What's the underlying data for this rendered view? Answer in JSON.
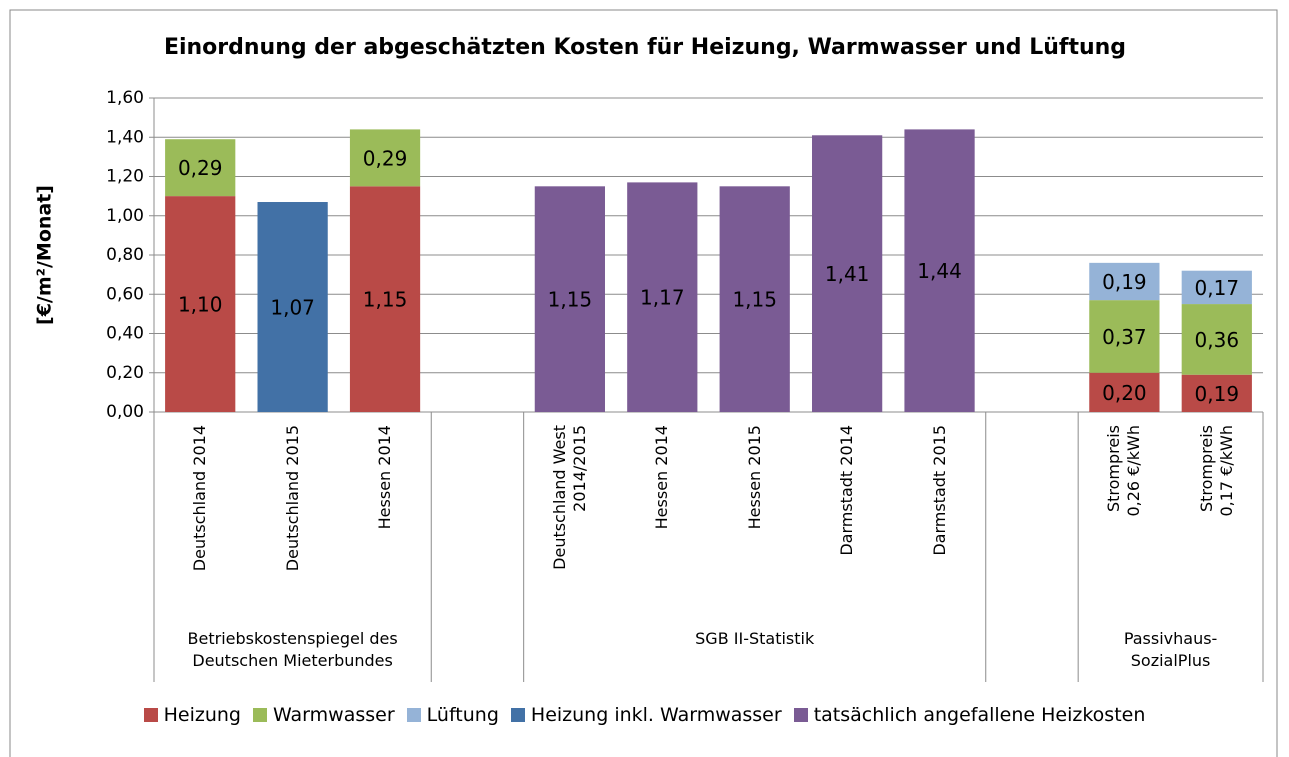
{
  "chart_data": {
    "type": "bar",
    "stacked": true,
    "title": "Einordnung der abgeschätzten Kosten für Heizung, Warmwasser und Lüftung",
    "y_label": "[€/m²/Monat]",
    "categories": [
      "Deutschland 2014",
      "Deutschland 2015",
      "Hessen 2014",
      null,
      "Deutschland West\n2014/2015",
      "Hessen 2014",
      "Hessen 2015",
      "Darmstadt 2014",
      "Darmstadt 2015",
      null,
      "Strompreis\n0,26 €/kWh",
      "Strompreis\n0,17 €/kWh"
    ],
    "groups": [
      {
        "label": "Betriebskostenspiegel des\nDeutschen Mieterbundes",
        "start": 0,
        "end": 2
      },
      {
        "label": "SGB II-Statistik",
        "start": 4,
        "end": 8
      },
      {
        "label": "Passivhaus-\nSozialPlus",
        "start": 10,
        "end": 11
      }
    ],
    "series": [
      {
        "name": "Heizung",
        "color": "#b94a47",
        "values": [
          1.1,
          null,
          1.15,
          null,
          null,
          null,
          null,
          null,
          null,
          null,
          0.2,
          0.19
        ],
        "value_labels": [
          "1,10",
          null,
          "1,15",
          null,
          null,
          null,
          null,
          null,
          null,
          null,
          "0,20",
          "0,19"
        ]
      },
      {
        "name": "Warmwasser",
        "color": "#9bbb59",
        "values": [
          0.29,
          null,
          0.29,
          null,
          null,
          null,
          null,
          null,
          null,
          null,
          0.37,
          0.36
        ],
        "value_labels": [
          "0,29",
          null,
          "0,29",
          null,
          null,
          null,
          null,
          null,
          null,
          null,
          "0,37",
          "0,36"
        ]
      },
      {
        "name": "Lüftung",
        "color": "#95b3d7",
        "values": [
          null,
          null,
          null,
          null,
          null,
          null,
          null,
          null,
          null,
          null,
          0.19,
          0.17
        ],
        "value_labels": [
          null,
          null,
          null,
          null,
          null,
          null,
          null,
          null,
          null,
          null,
          "0,19",
          "0,17"
        ]
      },
      {
        "name": "Heizung inkl. Warmwasser",
        "color": "#4271a6",
        "values": [
          null,
          1.07,
          null,
          null,
          null,
          null,
          null,
          null,
          null,
          null,
          null,
          null
        ],
        "value_labels": [
          null,
          "1,07",
          null,
          null,
          null,
          null,
          null,
          null,
          null,
          null,
          null,
          null
        ]
      },
      {
        "name": "tatsächlich angefallene Heizkosten",
        "color": "#7a5b94",
        "values": [
          null,
          null,
          null,
          null,
          1.15,
          1.17,
          1.15,
          1.41,
          1.44,
          null,
          null,
          null
        ],
        "value_labels": [
          null,
          null,
          null,
          null,
          "1,15",
          "1,17",
          "1,15",
          "1,41",
          "1,44",
          null,
          null,
          null
        ]
      }
    ],
    "ylim": [
      0,
      1.6
    ],
    "yticks": [
      {
        "value": 0,
        "label": "0,00"
      },
      {
        "value": 0.2,
        "label": "0,20"
      },
      {
        "value": 0.4,
        "label": "0,40"
      },
      {
        "value": 0.6,
        "label": "0,60"
      },
      {
        "value": 0.8,
        "label": "0,80"
      },
      {
        "value": 1.0,
        "label": "1,00"
      },
      {
        "value": 1.2,
        "label": "1,20"
      },
      {
        "value": 1.4,
        "label": "1,40"
      },
      {
        "value": 1.6,
        "label": "1,60"
      }
    ],
    "grid": true,
    "legend": "bottom"
  }
}
